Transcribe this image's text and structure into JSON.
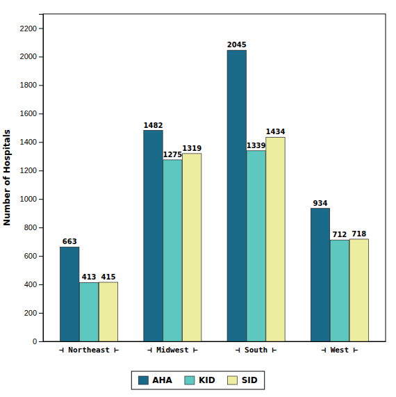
{
  "chart_data": {
    "type": "bar",
    "categories": [
      "⊣ Northeast ⊢",
      "⊣ Midwest ⊢",
      "⊣ South ⊢",
      "⊣ West ⊢"
    ],
    "series": [
      {
        "name": "AHA",
        "color": "#1a6b8a",
        "values": [
          663,
          1482,
          2045,
          934
        ]
      },
      {
        "name": "KID",
        "color": "#5dc8c0",
        "values": [
          413,
          1275,
          1339,
          712
        ]
      },
      {
        "name": "SID",
        "color": "#eeeea0",
        "values": [
          415,
          1319,
          1434,
          718
        ]
      }
    ],
    "ylabel": "Number of Hospitals",
    "ylim": [
      0,
      2300
    ],
    "yticks": [
      0,
      200,
      400,
      600,
      800,
      1000,
      1200,
      1400,
      1600,
      1800,
      2000,
      2200
    ],
    "data_labels": true,
    "legend": "bottom"
  }
}
